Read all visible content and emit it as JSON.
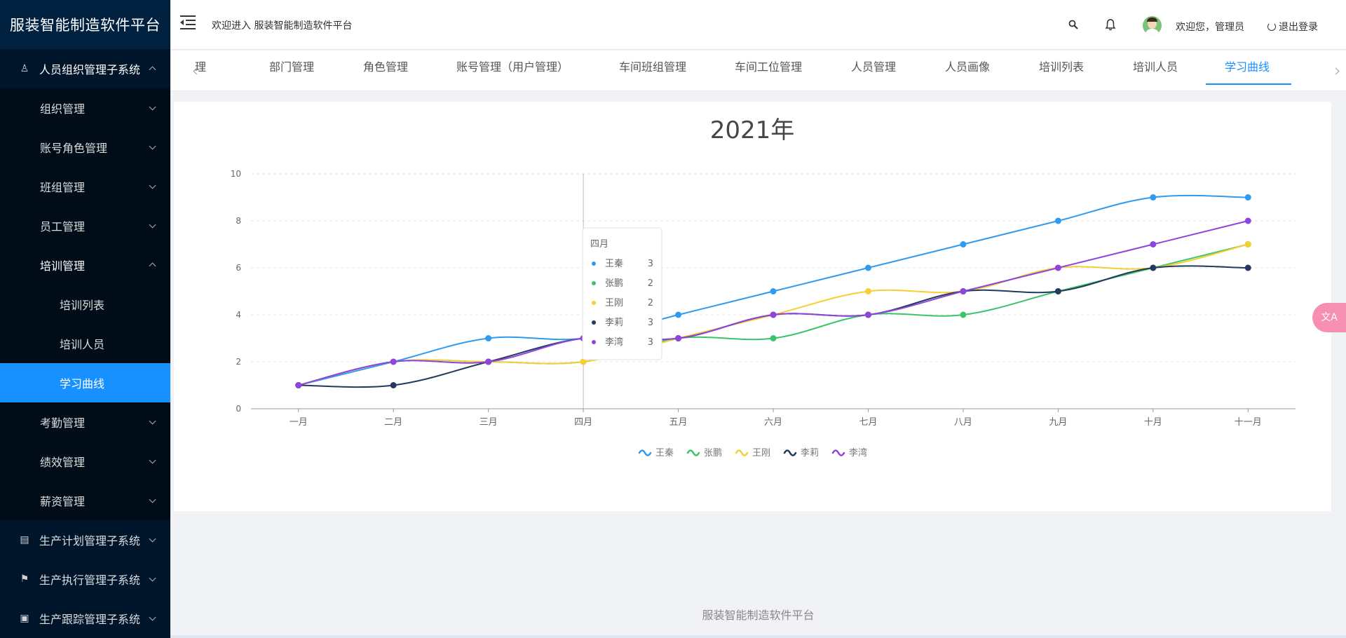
{
  "app": {
    "title": "服装智能制造软件平台"
  },
  "sidebar": {
    "items": [
      {
        "label": "人员组织管理子系统",
        "level": 0,
        "icon": "user-icon",
        "open": true
      },
      {
        "label": "组织管理",
        "level": 1
      },
      {
        "label": "账号角色管理",
        "level": 1
      },
      {
        "label": "班组管理",
        "level": 1
      },
      {
        "label": "员工管理",
        "level": 1
      },
      {
        "label": "培训管理",
        "level": 1,
        "open": true
      },
      {
        "label": "培训列表",
        "level": 2
      },
      {
        "label": "培训人员",
        "level": 2
      },
      {
        "label": "学习曲线",
        "level": 2,
        "active": true
      },
      {
        "label": "考勤管理",
        "level": 1
      },
      {
        "label": "绩效管理",
        "level": 1
      },
      {
        "label": "薪资管理",
        "level": 1
      },
      {
        "label": "生产计划管理子系统",
        "level": 0,
        "icon": "document-icon"
      },
      {
        "label": "生产执行管理子系统",
        "level": 0,
        "icon": "flag-icon"
      },
      {
        "label": "生产跟踪管理子系统",
        "level": 0,
        "icon": "monitor-icon"
      }
    ]
  },
  "header": {
    "welcome": "欢迎进入 服装智能制造软件平台",
    "greeting": "欢迎您，管理员",
    "logout": "退出登录"
  },
  "tabs": [
    {
      "label": "理"
    },
    {
      "label": "部门管理"
    },
    {
      "label": "角色管理"
    },
    {
      "label": "账号管理（用户管理）"
    },
    {
      "label": "车间班组管理"
    },
    {
      "label": "车间工位管理"
    },
    {
      "label": "人员管理"
    },
    {
      "label": "人员画像"
    },
    {
      "label": "培训列表"
    },
    {
      "label": "培训人员"
    },
    {
      "label": "学习曲线",
      "active": true
    }
  ],
  "chart_data": {
    "type": "line",
    "title": "2021年",
    "categories": [
      "一月",
      "二月",
      "三月",
      "四月",
      "五月",
      "六月",
      "七月",
      "八月",
      "九月",
      "十月",
      "十一月"
    ],
    "ylim": [
      0,
      10
    ],
    "yticks": [
      0,
      2,
      4,
      6,
      8,
      10
    ],
    "grid": true,
    "legend": "bottom-center",
    "series": [
      {
        "name": "王秦",
        "color": "#2f9bf0",
        "values": [
          1,
          2,
          3,
          3,
          4,
          5,
          6,
          7,
          8,
          9,
          9
        ]
      },
      {
        "name": "张鹏",
        "color": "#3cc46a",
        "values": [
          1,
          2,
          2,
          2,
          3,
          3,
          4,
          4,
          5,
          6,
          7
        ]
      },
      {
        "name": "王刚",
        "color": "#f5cf34",
        "values": [
          1,
          2,
          2,
          2,
          3,
          4,
          5,
          5,
          6,
          6,
          7
        ]
      },
      {
        "name": "李莉",
        "color": "#233a5e",
        "values": [
          1,
          1,
          2,
          3,
          3,
          4,
          4,
          5,
          5,
          6,
          6
        ]
      },
      {
        "name": "李湾",
        "color": "#8e44dd",
        "values": [
          1,
          2,
          2,
          3,
          3,
          4,
          4,
          5,
          6,
          7,
          8
        ]
      }
    ],
    "tooltip": {
      "category": "四月",
      "rows": [
        {
          "name": "王秦",
          "value": "3"
        },
        {
          "name": "张鹏",
          "value": "2"
        },
        {
          "name": "王刚",
          "value": "2"
        },
        {
          "name": "李莉",
          "value": "3"
        },
        {
          "name": "李湾",
          "value": "3"
        }
      ]
    }
  },
  "footer": {
    "text": "服装智能制造软件平台"
  },
  "float_button": {
    "label": "文A"
  }
}
